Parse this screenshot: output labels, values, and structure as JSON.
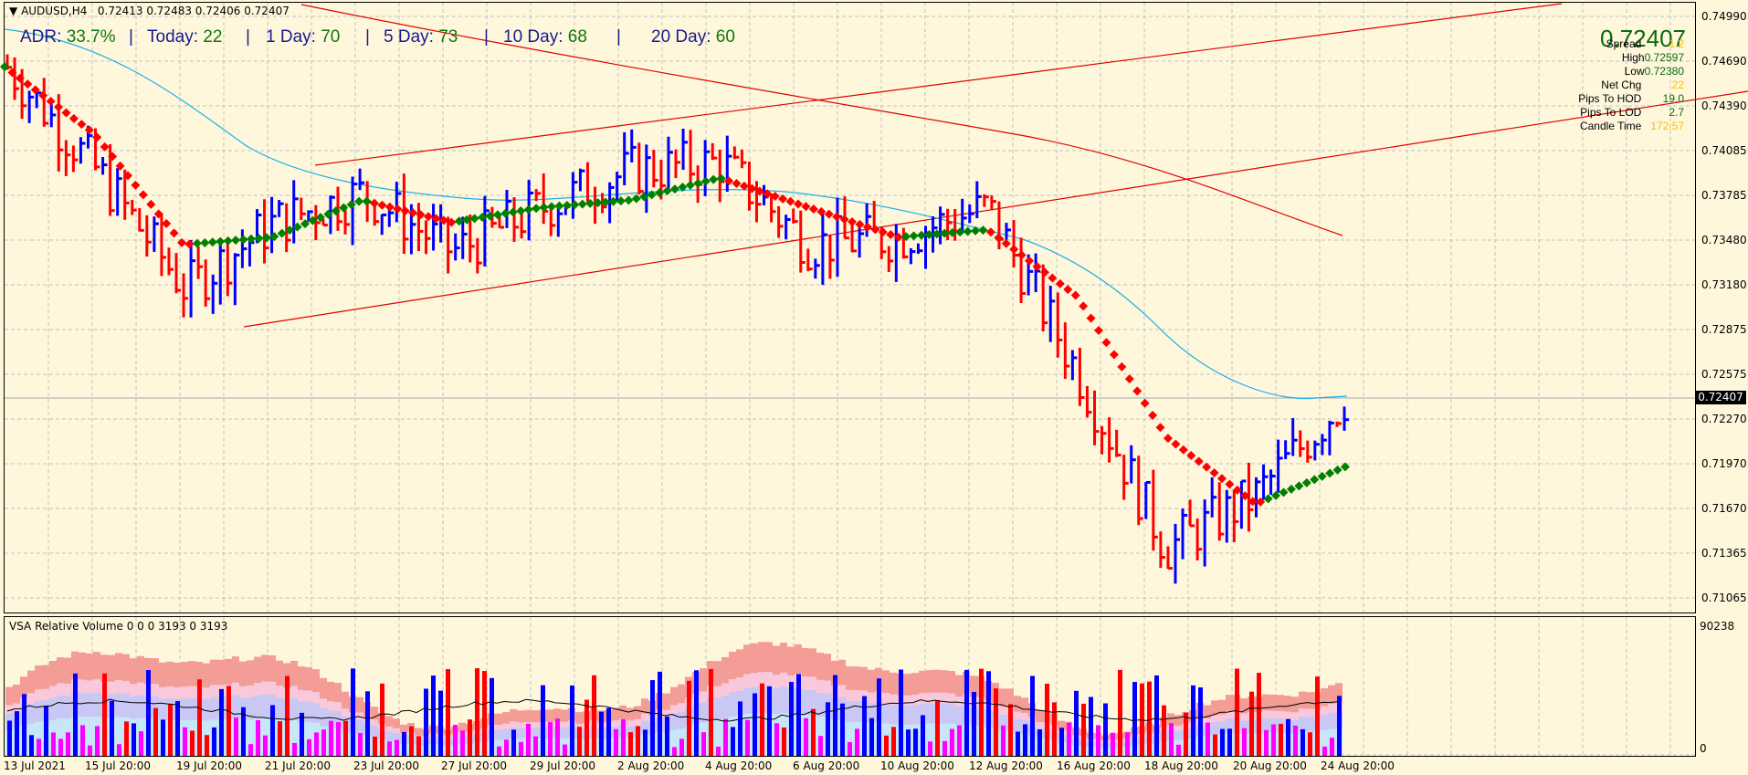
{
  "header": {
    "symbol": "AUDUSD,H4",
    "ohlc": "0.72413 0.72483 0.72406 0.72407"
  },
  "adr_panel": {
    "adr_label": "ADR:",
    "adr_value": "33.7%",
    "today_label": "Today:",
    "today_value": "22",
    "day1_label": "1 Day:",
    "day1_value": "70",
    "day5_label": "5 Day:",
    "day5_value": "73",
    "day10_label": "10 Day:",
    "day10_value": "68",
    "day20_label": "20 Day:",
    "day20_value": "60",
    "separator": "|"
  },
  "info_panel": {
    "price": "0.72407",
    "rows": [
      {
        "label": "Spread",
        "value": "1.2",
        "color": "yellow"
      },
      {
        "label": "High",
        "value": "0.72597",
        "color": "green"
      },
      {
        "label": "Low",
        "value": "0.72380",
        "color": "green"
      },
      {
        "label": "Net Chg",
        "value": "22",
        "color": "yellow"
      },
      {
        "label": "Pips To HOD",
        "value": "19.0",
        "color": "green"
      },
      {
        "label": "Pips To LOD",
        "value": "2.7",
        "color": "green"
      },
      {
        "label": "Candle Time",
        "value": "172:57",
        "color": "yellow"
      }
    ]
  },
  "price_axis": {
    "ticks": [
      "0.74990",
      "0.74690",
      "0.74390",
      "0.74085",
      "0.73785",
      "0.73480",
      "0.73180",
      "0.72875",
      "0.72575",
      "0.72270",
      "0.71970",
      "0.71670",
      "0.71365",
      "0.71065"
    ],
    "current_price": "0.72407"
  },
  "volume_panel": {
    "title": "VSA Relative Volume 0 0 0 3193 0 3193",
    "axis_max": "90238",
    "axis_min": "0"
  },
  "time_axis": {
    "labels": [
      "13 Jul 2021",
      "15 Jul 20:00",
      "19 Jul 20:00",
      "21 Jul 20:00",
      "23 Jul 20:00",
      "27 Jul 20:00",
      "29 Jul 20:00",
      "2 Aug 20:00",
      "4 Aug 20:00",
      "6 Aug 20:00",
      "10 Aug 20:00",
      "12 Aug 20:00",
      "16 Aug 20:00",
      "18 Aug 20:00",
      "20 Aug 20:00",
      "24 Aug 20:00"
    ]
  },
  "colors": {
    "background": "#fff7dc",
    "bull_bar": "#0000ff",
    "bear_bar": "#ff0000",
    "ma_up": "#008000",
    "ma_down": "#ff0000",
    "ma_slow": "#1ab0e8",
    "trendline": "#e00000",
    "grid": "#c0c0c0"
  },
  "chart_data": {
    "type": "ohlc",
    "title": "AUDUSD,H4",
    "ylim": [
      0.7092,
      0.7508
    ],
    "x": [
      "13 Jul 2021",
      "15 Jul 20:00",
      "19 Jul 20:00",
      "21 Jul 20:00",
      "23 Jul 20:00",
      "27 Jul 20:00",
      "29 Jul 20:00",
      "2 Aug 20:00",
      "4 Aug 20:00",
      "6 Aug 20:00",
      "10 Aug 20:00",
      "12 Aug 20:00",
      "16 Aug 20:00",
      "18 Aug 20:00",
      "20 Aug 20:00",
      "24 Aug 20:00"
    ],
    "approx_close_path": [
      0.7465,
      0.7395,
      0.7315,
      0.736,
      0.738,
      0.734,
      0.737,
      0.7395,
      0.74,
      0.7345,
      0.735,
      0.737,
      0.726,
      0.714,
      0.7175,
      0.7241
    ],
    "series": [
      {
        "name": "Fast MA (green up / red down)",
        "values": [
          0.7465,
          0.742,
          0.7345,
          0.735,
          0.7375,
          0.736,
          0.737,
          0.7375,
          0.739,
          0.737,
          0.735,
          0.7355,
          0.731,
          0.7215,
          0.717,
          0.7195
        ]
      },
      {
        "name": "Slow MA (light blue)",
        "values": [
          0.748,
          0.745,
          0.74,
          0.7385,
          0.738,
          0.7375,
          0.7375,
          0.738,
          0.7385,
          0.737,
          0.736,
          0.7355,
          0.732,
          0.7265,
          0.7245,
          0.724
        ]
      },
      {
        "name": "Long MA (red)",
        "values": [
          0.7512,
          0.7505,
          0.7495,
          0.7485,
          0.7478,
          0.7472,
          0.7465,
          0.7458,
          0.7452,
          0.7445,
          0.7438,
          0.7425,
          0.7405,
          0.738,
          0.736,
          0.735
        ]
      }
    ],
    "annotations": [
      "Ascending channel: lower line from 19 Jul low ~0.7290 rising; upper line from 21 Jul ~0.7400 rising",
      "Current price line 0.72407"
    ]
  }
}
